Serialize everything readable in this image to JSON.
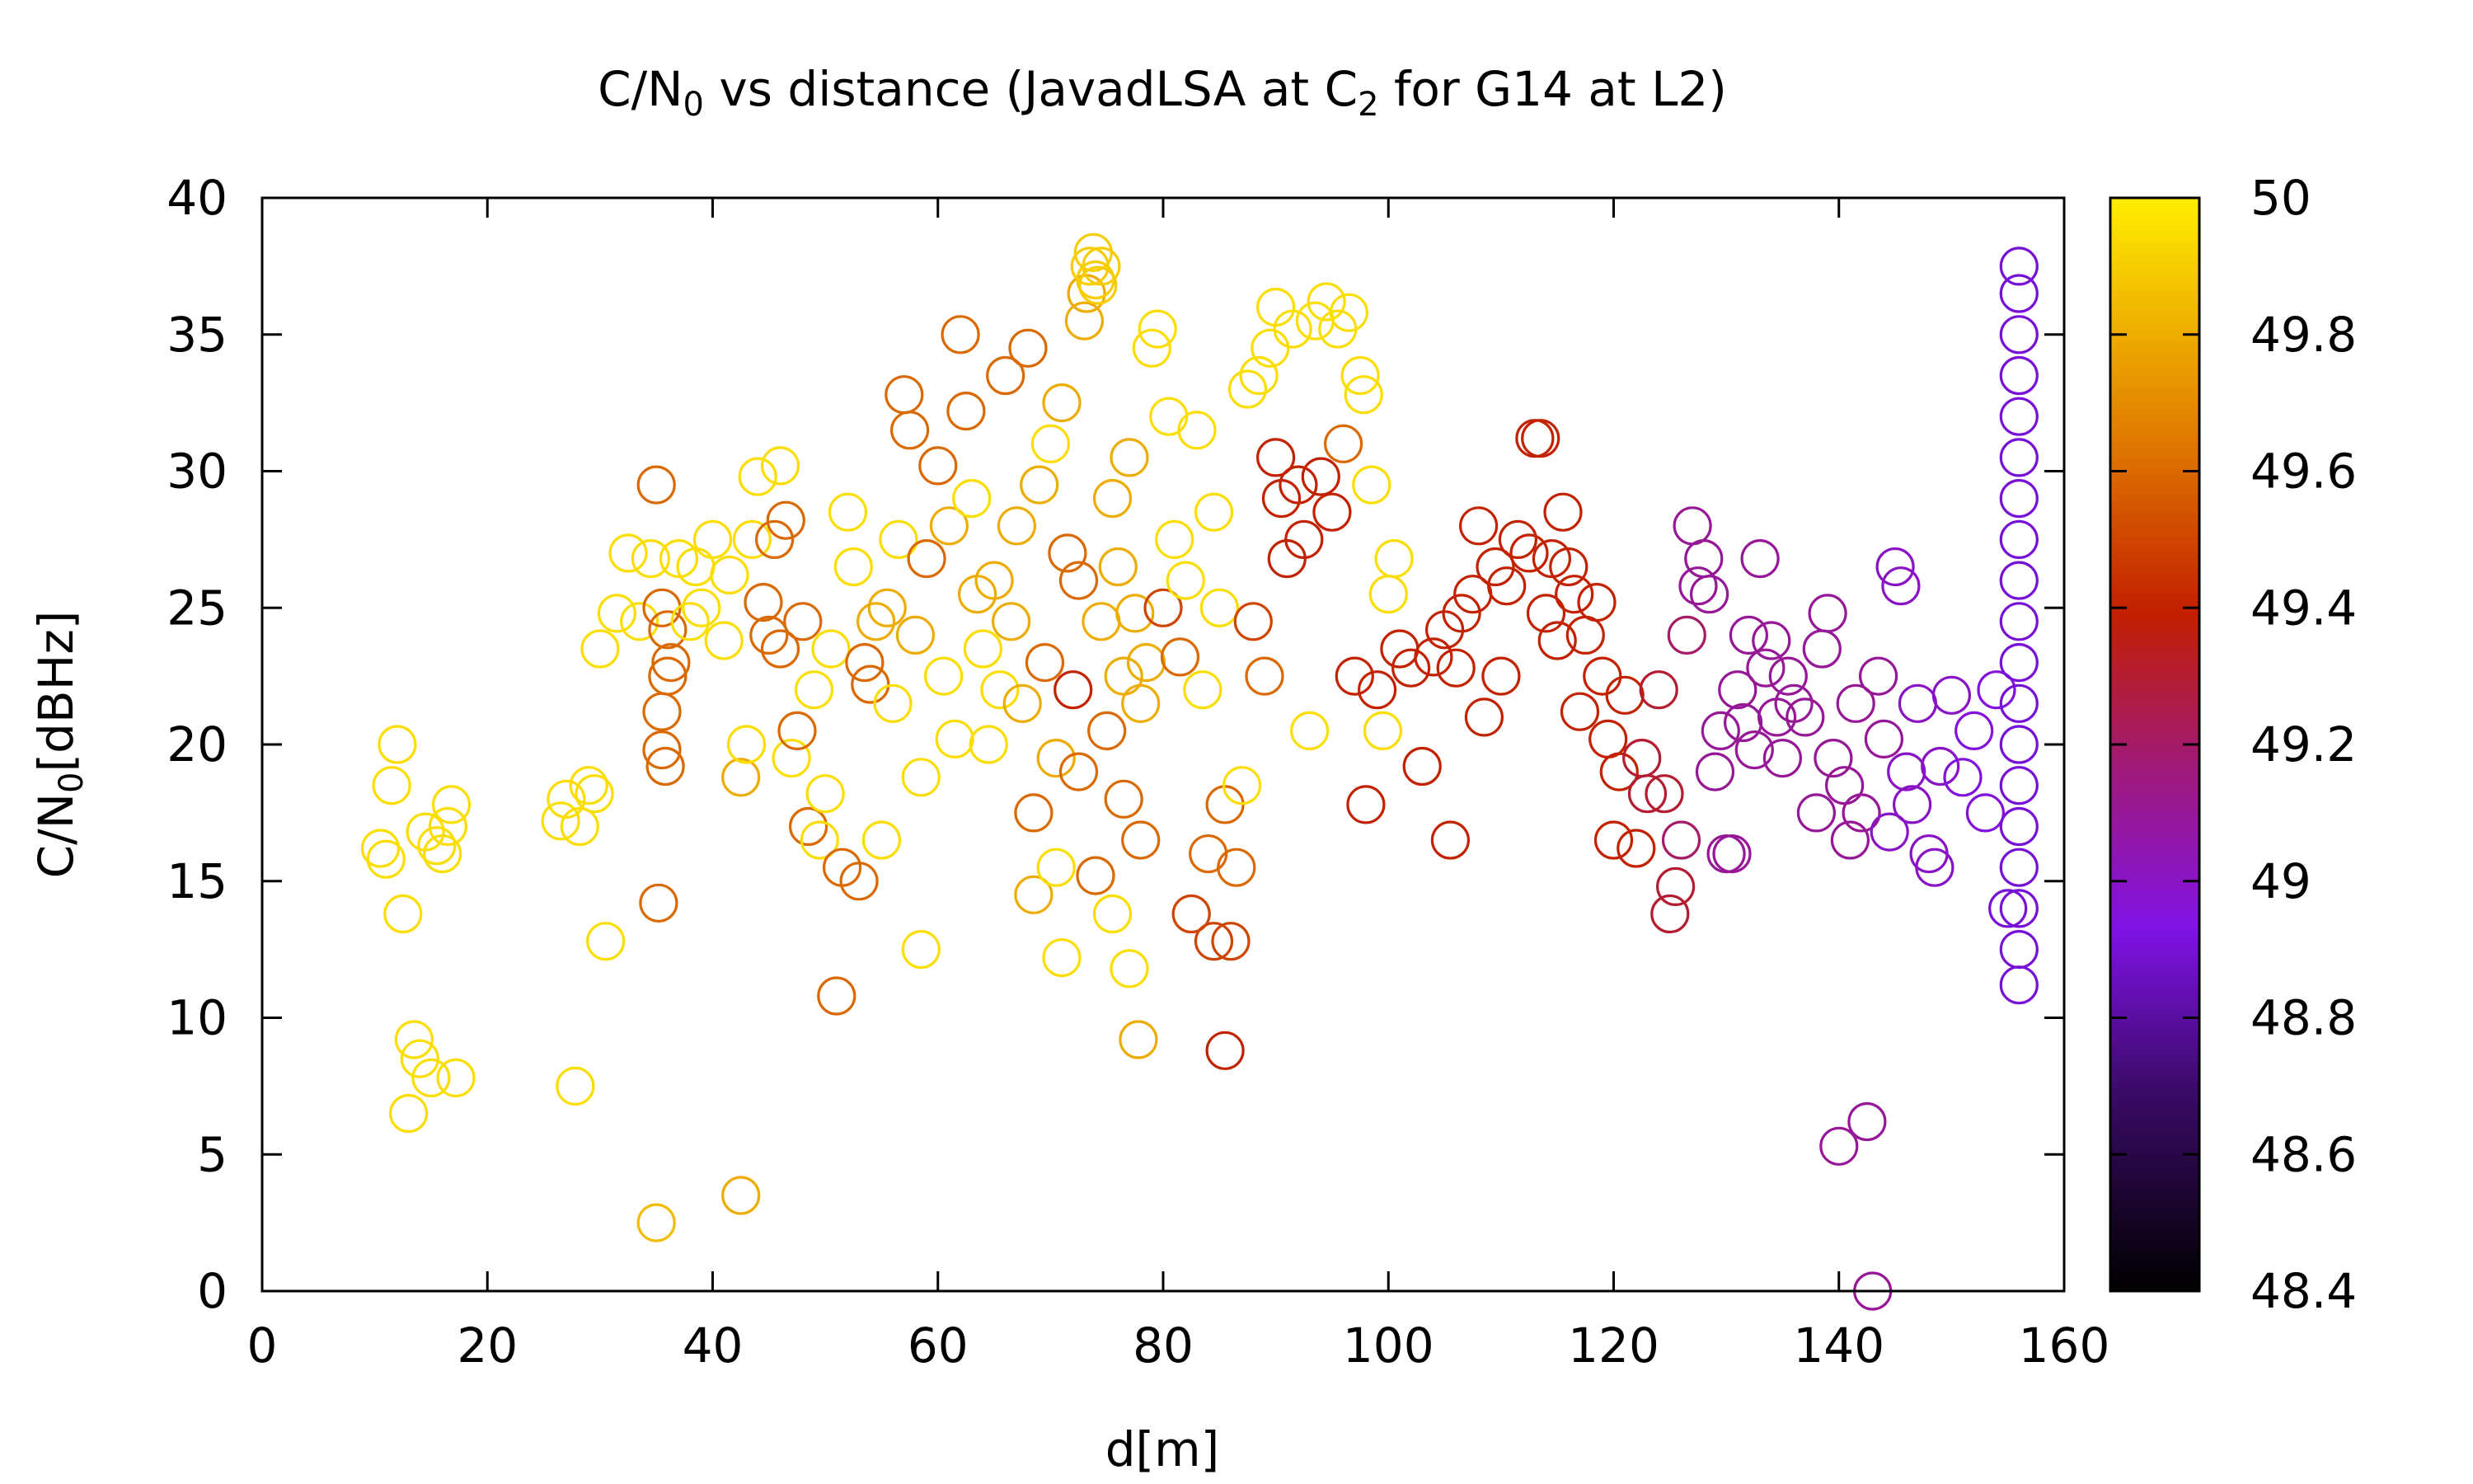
{
  "chart_data": {
    "type": "scatter",
    "title": {
      "prefix": "C/N",
      "sub1": "0",
      "middle": " vs distance (JavadLSA at C",
      "sub2": "2",
      "suffix": " for G14 at L2)"
    },
    "xlabel": "d[m]",
    "ylabel": {
      "main": "C/N",
      "sub": "0",
      "rest": "[dBHz]"
    },
    "xlim": [
      0,
      160
    ],
    "ylim": [
      0,
      40
    ],
    "xticks": [
      "0",
      "20",
      "40",
      "60",
      "80",
      "100",
      "120",
      "140",
      "160"
    ],
    "yticks": [
      "0",
      "5",
      "10",
      "15",
      "20",
      "25",
      "30",
      "35",
      "40"
    ],
    "colorbar": {
      "range": [
        48.4,
        50
      ],
      "ticks": [
        "48.4",
        "48.6",
        "48.8",
        "49",
        "49.2",
        "49.4",
        "49.6",
        "49.8",
        "50"
      ],
      "palette": "gnuplot black-purple-red-orange-yellow"
    },
    "marker": "open circle",
    "grid": false,
    "legend": "none",
    "points": [
      [
        10.5,
        16.2,
        49.95
      ],
      [
        11.0,
        15.8,
        49.95
      ],
      [
        11.5,
        18.5,
        49.95
      ],
      [
        12.0,
        20.0,
        49.95
      ],
      [
        12.5,
        13.8,
        49.95
      ],
      [
        13.0,
        6.5,
        49.95
      ],
      [
        13.5,
        9.2,
        49.95
      ],
      [
        14.0,
        8.5,
        49.95
      ],
      [
        15.0,
        7.8,
        49.95
      ],
      [
        14.5,
        16.8,
        49.95
      ],
      [
        15.5,
        16.3,
        49.95
      ],
      [
        16.0,
        16.0,
        49.95
      ],
      [
        16.5,
        17.0,
        49.95
      ],
      [
        16.8,
        17.8,
        49.95
      ],
      [
        17.2,
        7.8,
        49.95
      ],
      [
        26.5,
        17.2,
        49.95
      ],
      [
        27.0,
        18.0,
        49.95
      ],
      [
        27.8,
        7.5,
        49.95
      ],
      [
        28.2,
        17.0,
        49.95
      ],
      [
        29.0,
        18.5,
        49.95
      ],
      [
        29.5,
        18.2,
        49.95
      ],
      [
        30.5,
        12.8,
        49.95
      ],
      [
        30.0,
        23.5,
        49.95
      ],
      [
        31.5,
        24.8,
        49.95
      ],
      [
        32.5,
        27.0,
        49.95
      ],
      [
        33.5,
        24.5,
        49.95
      ],
      [
        34.5,
        26.8,
        49.95
      ],
      [
        35.0,
        2.5,
        49.85
      ],
      [
        35.2,
        14.2,
        49.6
      ],
      [
        35.5,
        19.8,
        49.6
      ],
      [
        35.8,
        19.2,
        49.6
      ],
      [
        35.0,
        29.5,
        49.6
      ],
      [
        35.5,
        21.2,
        49.6
      ],
      [
        36.0,
        22.5,
        49.6
      ],
      [
        36.0,
        24.2,
        49.6
      ],
      [
        35.5,
        25.0,
        49.6
      ],
      [
        36.3,
        23.0,
        49.6
      ],
      [
        37.0,
        26.8,
        49.95
      ],
      [
        38.0,
        24.5,
        49.95
      ],
      [
        38.5,
        26.5,
        49.95
      ],
      [
        39.0,
        25.0,
        49.95
      ],
      [
        40.0,
        27.5,
        49.95
      ],
      [
        41.0,
        23.8,
        49.95
      ],
      [
        41.5,
        26.2,
        49.95
      ],
      [
        42.5,
        3.5,
        49.8
      ],
      [
        42.5,
        18.8,
        49.8
      ],
      [
        43.0,
        20.0,
        49.95
      ],
      [
        43.5,
        27.5,
        49.95
      ],
      [
        44.0,
        29.8,
        49.95
      ],
      [
        44.5,
        25.2,
        49.6
      ],
      [
        45.0,
        24.0,
        49.6
      ],
      [
        45.5,
        27.5,
        49.6
      ],
      [
        46.0,
        30.2,
        49.95
      ],
      [
        46.5,
        28.2,
        49.6
      ],
      [
        46.0,
        23.5,
        49.6
      ],
      [
        47.0,
        19.5,
        49.95
      ],
      [
        47.5,
        20.5,
        49.6
      ],
      [
        48.0,
        24.5,
        49.6
      ],
      [
        48.5,
        17.0,
        49.6
      ],
      [
        49.0,
        22.0,
        49.95
      ],
      [
        49.5,
        16.5,
        49.95
      ],
      [
        50.0,
        18.2,
        49.95
      ],
      [
        50.5,
        23.5,
        49.95
      ],
      [
        51.0,
        10.8,
        49.6
      ],
      [
        51.5,
        15.5,
        49.6
      ],
      [
        52.0,
        28.5,
        49.95
      ],
      [
        52.5,
        26.5,
        49.95
      ],
      [
        53.0,
        15.0,
        49.6
      ],
      [
        53.5,
        23.0,
        49.6
      ],
      [
        54.0,
        22.2,
        49.6
      ],
      [
        54.5,
        24.5,
        49.8
      ],
      [
        55.0,
        16.5,
        49.95
      ],
      [
        55.5,
        25.0,
        49.8
      ],
      [
        56.0,
        21.5,
        49.95
      ],
      [
        56.5,
        27.5,
        49.95
      ],
      [
        57.0,
        32.8,
        49.6
      ],
      [
        57.5,
        31.5,
        49.6
      ],
      [
        58.0,
        24.0,
        49.8
      ],
      [
        58.5,
        12.5,
        49.95
      ],
      [
        58.5,
        18.8,
        49.95
      ],
      [
        59.0,
        26.8,
        49.6
      ],
      [
        60.0,
        30.2,
        49.6
      ],
      [
        60.5,
        22.5,
        49.95
      ],
      [
        61.0,
        28.0,
        49.8
      ],
      [
        61.5,
        20.2,
        49.95
      ],
      [
        62.0,
        35.0,
        49.6
      ],
      [
        62.5,
        32.2,
        49.6
      ],
      [
        63.0,
        29.0,
        49.95
      ],
      [
        63.5,
        25.5,
        49.8
      ],
      [
        64.0,
        23.5,
        49.95
      ],
      [
        64.5,
        20.0,
        49.95
      ],
      [
        65.0,
        26.0,
        49.8
      ],
      [
        65.5,
        22.0,
        49.95
      ],
      [
        66.0,
        33.5,
        49.6
      ],
      [
        66.5,
        24.5,
        49.8
      ],
      [
        67.0,
        28.0,
        49.8
      ],
      [
        67.5,
        21.5,
        49.8
      ],
      [
        68.0,
        34.5,
        49.6
      ],
      [
        68.5,
        17.5,
        49.6
      ],
      [
        68.5,
        14.5,
        49.8
      ],
      [
        69.0,
        29.5,
        49.8
      ],
      [
        69.5,
        23.0,
        49.6
      ],
      [
        70.0,
        31.0,
        49.95
      ],
      [
        70.5,
        19.5,
        49.8
      ],
      [
        70.5,
        15.5,
        49.95
      ],
      [
        71.0,
        12.2,
        49.95
      ],
      [
        71.0,
        32.5,
        49.8
      ],
      [
        71.5,
        27.0,
        49.6
      ],
      [
        72.0,
        22.0,
        49.4
      ],
      [
        72.5,
        26.0,
        49.6
      ],
      [
        72.5,
        19.0,
        49.6
      ],
      [
        73.0,
        35.5,
        49.8
      ],
      [
        73.2,
        36.5,
        49.8
      ],
      [
        73.5,
        37.5,
        49.9
      ],
      [
        73.8,
        38.0,
        49.9
      ],
      [
        74.0,
        37.0,
        49.9
      ],
      [
        74.5,
        37.5,
        49.9
      ],
      [
        74.2,
        36.8,
        49.9
      ],
      [
        74.0,
        15.2,
        49.6
      ],
      [
        74.5,
        24.5,
        49.8
      ],
      [
        75.0,
        20.5,
        49.6
      ],
      [
        75.5,
        29.0,
        49.8
      ],
      [
        75.5,
        13.8,
        49.95
      ],
      [
        76.0,
        26.5,
        49.8
      ],
      [
        76.5,
        18.0,
        49.6
      ],
      [
        76.5,
        22.5,
        49.8
      ],
      [
        77.0,
        30.5,
        49.8
      ],
      [
        77.0,
        11.8,
        49.95
      ],
      [
        77.5,
        24.8,
        49.8
      ],
      [
        77.8,
        9.2,
        49.8
      ],
      [
        78.0,
        21.5,
        49.8
      ],
      [
        78.0,
        16.5,
        49.6
      ],
      [
        78.5,
        23.0,
        49.8
      ],
      [
        79.0,
        34.5,
        49.95
      ],
      [
        79.5,
        35.2,
        49.95
      ],
      [
        80.0,
        25.0,
        49.5
      ],
      [
        80.5,
        32.0,
        49.95
      ],
      [
        81.0,
        27.5,
        49.95
      ],
      [
        81.5,
        23.2,
        49.6
      ],
      [
        82.0,
        26.0,
        49.95
      ],
      [
        82.5,
        13.8,
        49.5
      ],
      [
        83.0,
        31.5,
        49.95
      ],
      [
        83.5,
        22.0,
        49.95
      ],
      [
        84.0,
        16.0,
        49.6
      ],
      [
        84.5,
        12.8,
        49.5
      ],
      [
        84.5,
        28.5,
        49.95
      ],
      [
        85.0,
        25.0,
        49.95
      ],
      [
        85.5,
        8.8,
        49.4
      ],
      [
        85.5,
        17.8,
        49.6
      ],
      [
        86.0,
        12.8,
        49.5
      ],
      [
        86.5,
        15.5,
        49.6
      ],
      [
        87.0,
        18.5,
        49.95
      ],
      [
        87.5,
        33.0,
        49.95
      ],
      [
        88.0,
        24.5,
        49.5
      ],
      [
        88.5,
        33.5,
        49.95
      ],
      [
        89.0,
        22.5,
        49.6
      ],
      [
        89.5,
        34.5,
        49.95
      ],
      [
        90.0,
        30.5,
        49.4
      ],
      [
        90.0,
        36.0,
        49.95
      ],
      [
        90.5,
        29.0,
        49.4
      ],
      [
        91.0,
        26.8,
        49.4
      ],
      [
        91.5,
        35.2,
        49.95
      ],
      [
        92.0,
        29.5,
        49.4
      ],
      [
        92.5,
        27.5,
        49.4
      ],
      [
        93.0,
        20.5,
        49.95
      ],
      [
        93.5,
        35.5,
        49.95
      ],
      [
        94.0,
        29.8,
        49.4
      ],
      [
        94.5,
        36.2,
        49.95
      ],
      [
        95.0,
        28.5,
        49.4
      ],
      [
        95.5,
        35.2,
        49.95
      ],
      [
        96.0,
        31.0,
        49.6
      ],
      [
        96.5,
        35.8,
        49.95
      ],
      [
        97.0,
        22.5,
        49.4
      ],
      [
        97.5,
        33.5,
        49.95
      ],
      [
        97.8,
        32.8,
        49.95
      ],
      [
        98.0,
        17.8,
        49.4
      ],
      [
        98.5,
        29.5,
        49.95
      ],
      [
        99.0,
        22.0,
        49.4
      ],
      [
        99.5,
        20.5,
        49.95
      ],
      [
        100.0,
        25.5,
        49.95
      ],
      [
        100.5,
        26.8,
        49.95
      ],
      [
        101.0,
        23.5,
        49.4
      ],
      [
        102.0,
        22.8,
        49.4
      ],
      [
        103.0,
        19.2,
        49.4
      ],
      [
        104.0,
        23.2,
        49.4
      ],
      [
        105.0,
        24.2,
        49.4
      ],
      [
        105.5,
        16.5,
        49.4
      ],
      [
        106.0,
        22.8,
        49.4
      ],
      [
        106.5,
        24.8,
        49.4
      ],
      [
        107.5,
        25.5,
        49.4
      ],
      [
        108.0,
        28.0,
        49.4
      ],
      [
        108.5,
        21.0,
        49.4
      ],
      [
        109.5,
        26.5,
        49.4
      ],
      [
        110.0,
        22.5,
        49.4
      ],
      [
        110.5,
        25.8,
        49.4
      ],
      [
        111.5,
        27.5,
        49.4
      ],
      [
        112.5,
        27.0,
        49.4
      ],
      [
        113.0,
        31.2,
        49.4
      ],
      [
        113.5,
        31.2,
        49.4
      ],
      [
        114.0,
        24.8,
        49.4
      ],
      [
        114.5,
        26.8,
        49.4
      ],
      [
        115.0,
        23.8,
        49.4
      ],
      [
        115.5,
        28.5,
        49.4
      ],
      [
        116.0,
        26.5,
        49.4
      ],
      [
        116.5,
        25.5,
        49.4
      ],
      [
        117.0,
        21.2,
        49.4
      ],
      [
        117.5,
        24.0,
        49.4
      ],
      [
        118.5,
        25.2,
        49.4
      ],
      [
        119.0,
        22.5,
        49.4
      ],
      [
        119.5,
        20.2,
        49.4
      ],
      [
        120.0,
        16.5,
        49.4
      ],
      [
        120.5,
        19.0,
        49.4
      ],
      [
        121.0,
        21.8,
        49.4
      ],
      [
        122.0,
        16.2,
        49.4
      ],
      [
        122.5,
        19.5,
        49.3
      ],
      [
        123.0,
        18.2,
        49.3
      ],
      [
        124.0,
        22.0,
        49.3
      ],
      [
        124.5,
        18.2,
        49.3
      ],
      [
        125.0,
        13.8,
        49.3
      ],
      [
        125.5,
        14.8,
        49.3
      ],
      [
        126.0,
        16.5,
        49.2
      ],
      [
        126.5,
        24.0,
        49.2
      ],
      [
        127.0,
        28.0,
        49.1
      ],
      [
        127.5,
        25.8,
        49.1
      ],
      [
        128.0,
        26.8,
        49.1
      ],
      [
        128.5,
        25.5,
        49.1
      ],
      [
        129.0,
        19.0,
        49.1
      ],
      [
        129.5,
        20.5,
        49.1
      ],
      [
        130.0,
        16.0,
        49.1
      ],
      [
        130.5,
        16.0,
        49.1
      ],
      [
        131.0,
        22.0,
        49.1
      ],
      [
        131.5,
        20.8,
        49.1
      ],
      [
        132.0,
        24.0,
        49.1
      ],
      [
        132.5,
        19.8,
        49.1
      ],
      [
        133.0,
        26.8,
        49.1
      ],
      [
        133.5,
        22.8,
        49.1
      ],
      [
        134.0,
        23.8,
        49.1
      ],
      [
        134.5,
        21.0,
        49.1
      ],
      [
        135.0,
        19.5,
        49.1
      ],
      [
        135.5,
        22.5,
        49.1
      ],
      [
        136.0,
        21.5,
        49.1
      ],
      [
        137.0,
        21.0,
        49.1
      ],
      [
        138.0,
        17.5,
        49.1
      ],
      [
        138.5,
        23.5,
        49.1
      ],
      [
        139.0,
        24.8,
        49.1
      ],
      [
        139.5,
        19.5,
        49.1
      ],
      [
        140.0,
        5.3,
        49.1
      ],
      [
        140.5,
        18.5,
        49.1
      ],
      [
        141.0,
        16.5,
        49.1
      ],
      [
        141.5,
        21.5,
        49.1
      ],
      [
        142.0,
        17.5,
        49.1
      ],
      [
        142.5,
        6.2,
        49.1
      ],
      [
        143.0,
        0.0,
        49.1
      ],
      [
        143.5,
        22.5,
        49.1
      ],
      [
        144.0,
        20.2,
        49.1
      ],
      [
        144.5,
        16.8,
        49.0
      ],
      [
        145.0,
        26.5,
        49.0
      ],
      [
        145.5,
        25.8,
        49.0
      ],
      [
        146.0,
        19.0,
        49.0
      ],
      [
        146.5,
        17.8,
        49.0
      ],
      [
        147.0,
        21.5,
        49.0
      ],
      [
        148.0,
        16.0,
        49.0
      ],
      [
        148.5,
        15.5,
        49.0
      ],
      [
        149.0,
        19.2,
        49.0
      ],
      [
        150.0,
        21.8,
        49.0
      ],
      [
        151.0,
        18.8,
        48.95
      ],
      [
        152.0,
        20.5,
        48.95
      ],
      [
        153.0,
        17.5,
        48.95
      ],
      [
        154.0,
        22.0,
        48.95
      ],
      [
        155.0,
        14.0,
        48.9
      ],
      [
        156.0,
        11.2,
        48.9
      ],
      [
        156.0,
        12.5,
        48.9
      ],
      [
        156.0,
        14.0,
        48.9
      ],
      [
        156.0,
        15.5,
        48.9
      ],
      [
        156.0,
        17.0,
        48.9
      ],
      [
        156.0,
        18.5,
        48.9
      ],
      [
        156.0,
        20.0,
        48.9
      ],
      [
        156.0,
        21.5,
        48.9
      ],
      [
        156.0,
        23.0,
        48.9
      ],
      [
        156.0,
        24.5,
        48.9
      ],
      [
        156.0,
        26.0,
        48.9
      ],
      [
        156.0,
        27.5,
        48.9
      ],
      [
        156.0,
        29.0,
        48.9
      ],
      [
        156.0,
        30.5,
        48.9
      ],
      [
        156.0,
        32.0,
        48.9
      ],
      [
        156.0,
        33.5,
        48.9
      ],
      [
        156.0,
        35.0,
        48.9
      ],
      [
        156.0,
        36.5,
        48.9
      ],
      [
        156.0,
        37.5,
        48.9
      ]
    ]
  }
}
